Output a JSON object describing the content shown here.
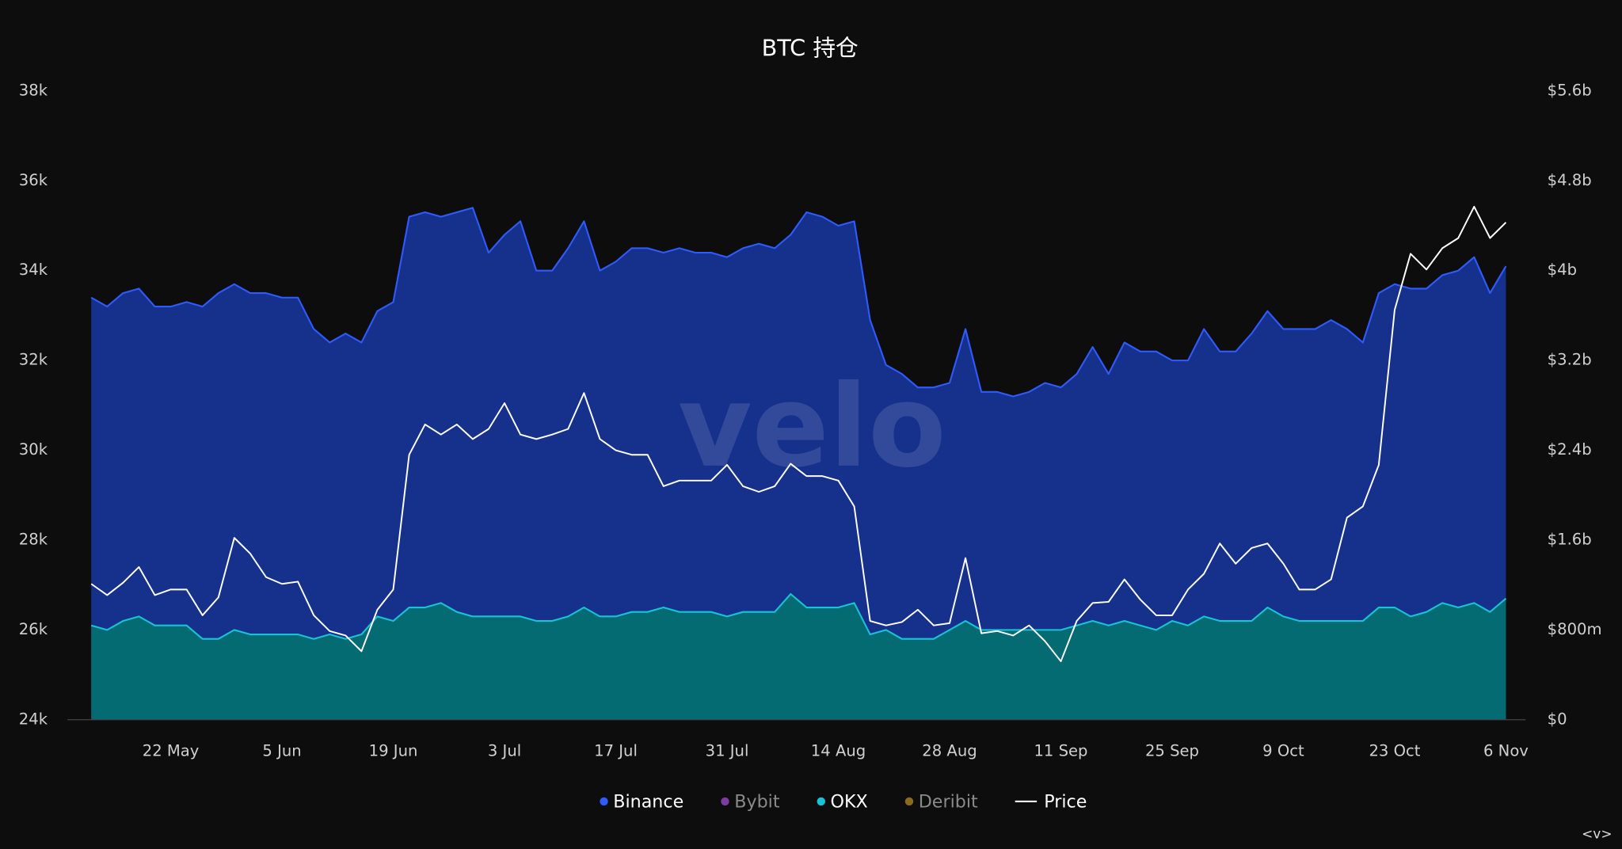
{
  "chart_data": {
    "type": "area",
    "title": "BTC 持仓",
    "watermark": "velo",
    "corner_label": "<v>",
    "x": [
      "12 May",
      "14 May",
      "16 May",
      "18 May",
      "20 May",
      "22 May",
      "24 May",
      "26 May",
      "28 May",
      "30 May",
      "1 Jun",
      "3 Jun",
      "5 Jun",
      "7 Jun",
      "9 Jun",
      "11 Jun",
      "13 Jun",
      "15 Jun",
      "17 Jun",
      "19 Jun",
      "21 Jun",
      "23 Jun",
      "25 Jun",
      "27 Jun",
      "29 Jun",
      "1 Jul",
      "3 Jul",
      "5 Jul",
      "7 Jul",
      "9 Jul",
      "11 Jul",
      "13 Jul",
      "15 Jul",
      "17 Jul",
      "19 Jul",
      "21 Jul",
      "23 Jul",
      "25 Jul",
      "27 Jul",
      "29 Jul",
      "31 Jul",
      "2 Aug",
      "4 Aug",
      "6 Aug",
      "8 Aug",
      "10 Aug",
      "12 Aug",
      "14 Aug",
      "16 Aug",
      "18 Aug",
      "20 Aug",
      "22 Aug",
      "24 Aug",
      "26 Aug",
      "28 Aug",
      "30 Aug",
      "1 Sep",
      "3 Sep",
      "5 Sep",
      "7 Sep",
      "9 Sep",
      "11 Sep",
      "13 Sep",
      "15 Sep",
      "17 Sep",
      "19 Sep",
      "21 Sep",
      "23 Sep",
      "25 Sep",
      "27 Sep",
      "29 Sep",
      "1 Oct",
      "3 Oct",
      "5 Oct",
      "7 Oct",
      "9 Oct",
      "11 Oct",
      "13 Oct",
      "15 Oct",
      "17 Oct",
      "19 Oct",
      "21 Oct",
      "23 Oct",
      "25 Oct",
      "27 Oct",
      "29 Oct",
      "31 Oct",
      "2 Nov",
      "4 Nov",
      "6 Nov"
    ],
    "xticks": [
      "22 May",
      "5 Jun",
      "19 Jun",
      "3 Jul",
      "17 Jul",
      "31 Jul",
      "14 Aug",
      "28 Aug",
      "11 Sep",
      "25 Sep",
      "9 Oct",
      "23 Oct",
      "6 Nov"
    ],
    "ylim": [
      24000,
      38000
    ],
    "yticks": [
      {
        "value": 24000,
        "label": "24k"
      },
      {
        "value": 26000,
        "label": "26k"
      },
      {
        "value": 28000,
        "label": "28k"
      },
      {
        "value": 30000,
        "label": "30k"
      },
      {
        "value": 32000,
        "label": "32k"
      },
      {
        "value": 34000,
        "label": "34k"
      },
      {
        "value": 36000,
        "label": "36k"
      },
      {
        "value": 38000,
        "label": "38k"
      }
    ],
    "y2lim": [
      0,
      5600000000
    ],
    "y2ticks": [
      {
        "value": 0,
        "label": "$0"
      },
      {
        "value": 800000000,
        "label": "$800m"
      },
      {
        "value": 1600000000,
        "label": "$1.6b"
      },
      {
        "value": 2400000000,
        "label": "$2.4b"
      },
      {
        "value": 3200000000,
        "label": "$3.2b"
      },
      {
        "value": 4000000000,
        "label": "$4b"
      },
      {
        "value": 4800000000,
        "label": "$4.8b"
      },
      {
        "value": 5600000000,
        "label": "$5.6b"
      }
    ],
    "series": [
      {
        "name": "Binance",
        "color": "#2e5bff",
        "fill": "#16318c",
        "visible": true,
        "values": [
          33400,
          33200,
          33500,
          33600,
          33200,
          33200,
          33300,
          33200,
          33500,
          33700,
          33500,
          33500,
          33400,
          33400,
          32700,
          32400,
          32600,
          32400,
          33100,
          33300,
          35200,
          35300,
          35200,
          35300,
          35400,
          34400,
          34800,
          35100,
          34000,
          34000,
          34500,
          35100,
          34000,
          34200,
          34500,
          34500,
          34400,
          34500,
          34400,
          34400,
          34300,
          34500,
          34600,
          34500,
          34800,
          35300,
          35200,
          35000,
          35100,
          32900,
          31900,
          31700,
          31400,
          31400,
          31500,
          32700,
          31300,
          31300,
          31200,
          31300,
          31500,
          31400,
          31700,
          32300,
          31700,
          32400,
          32200,
          32200,
          32000,
          32000,
          32700,
          32200,
          32200,
          32600,
          33100,
          32700,
          32700,
          32700,
          32900,
          32700,
          32400,
          33500,
          33700,
          33600,
          33600,
          33900,
          34000,
          34300,
          33500,
          34100
        ]
      },
      {
        "name": "Bybit",
        "color": "#7a3c9e",
        "visible": false
      },
      {
        "name": "OKX",
        "color": "#18c3d6",
        "fill": "#046b73",
        "visible": true,
        "values": [
          26100,
          26000,
          26200,
          26300,
          26100,
          26100,
          26100,
          25800,
          25800,
          26000,
          25900,
          25900,
          25900,
          25900,
          25800,
          25900,
          25800,
          25900,
          26300,
          26200,
          26500,
          26500,
          26600,
          26400,
          26300,
          26300,
          26300,
          26300,
          26200,
          26200,
          26300,
          26500,
          26300,
          26300,
          26400,
          26400,
          26500,
          26400,
          26400,
          26400,
          26300,
          26400,
          26400,
          26400,
          26800,
          26500,
          26500,
          26500,
          26600,
          25900,
          26000,
          25800,
          25800,
          25800,
          26000,
          26200,
          26000,
          26000,
          26000,
          26000,
          26000,
          26000,
          26100,
          26200,
          26100,
          26200,
          26100,
          26000,
          26200,
          26100,
          26300,
          26200,
          26200,
          26200,
          26500,
          26300,
          26200,
          26200,
          26200,
          26200,
          26200,
          26500,
          26500,
          26300,
          26400,
          26600,
          26500,
          26600,
          26400,
          26700
        ]
      },
      {
        "name": "Deribit",
        "color": "#8a6a1e",
        "visible": false
      },
      {
        "name": "Price",
        "color": "#ffffff",
        "axis": "y2",
        "visible": true,
        "values": [
          1210000000,
          1110000000,
          1220000000,
          1360000000,
          1110000000,
          1160000000,
          1160000000,
          930000000,
          1090000000,
          1620000000,
          1480000000,
          1270000000,
          1210000000,
          1230000000,
          930000000,
          790000000,
          750000000,
          610000000,
          980000000,
          1160000000,
          2360000000,
          2630000000,
          2540000000,
          2630000000,
          2500000000,
          2590000000,
          2820000000,
          2540000000,
          2500000000,
          2540000000,
          2590000000,
          2910000000,
          2500000000,
          2400000000,
          2360000000,
          2360000000,
          2080000000,
          2130000000,
          2130000000,
          2130000000,
          2270000000,
          2080000000,
          2030000000,
          2080000000,
          2280000000,
          2170000000,
          2170000000,
          2130000000,
          1900000000,
          880000000,
          840000000,
          870000000,
          980000000,
          840000000,
          860000000,
          1440000000,
          770000000,
          790000000,
          750000000,
          840000000,
          700000000,
          520000000,
          880000000,
          1040000000,
          1050000000,
          1250000000,
          1070000000,
          930000000,
          930000000,
          1160000000,
          1300000000,
          1570000000,
          1390000000,
          1530000000,
          1570000000,
          1390000000,
          1160000000,
          1160000000,
          1250000000,
          1800000000,
          1900000000,
          2270000000,
          3650000000,
          4150000000,
          4010000000,
          4200000000,
          4290000000,
          4570000000,
          4290000000,
          4430000000
        ]
      }
    ]
  }
}
